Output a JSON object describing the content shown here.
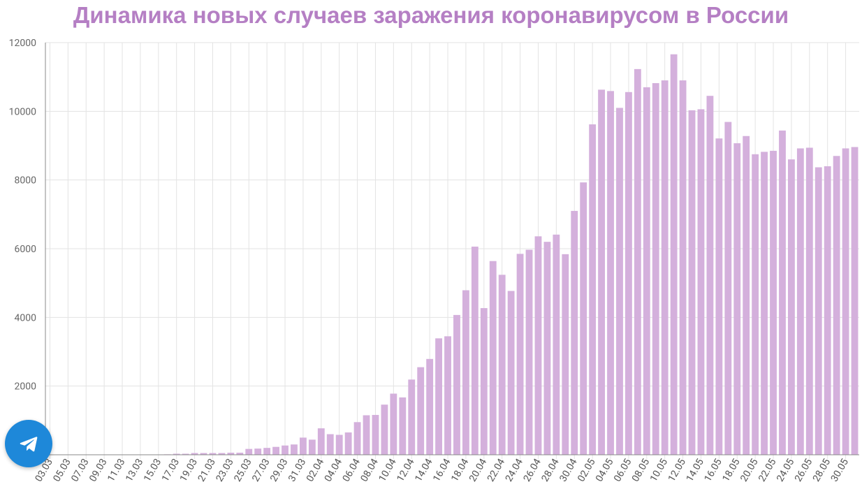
{
  "title": "Динамика новых случаев заражения коронавирусом в России",
  "telegram_button": {
    "icon": "telegram-paper-plane-icon"
  },
  "chart_data": {
    "type": "bar",
    "title": "Динамика новых случаев заражения коронавирусом в России",
    "xlabel": "",
    "ylabel": "",
    "ylim": [
      0,
      12000
    ],
    "yticks": [
      2000,
      4000,
      6000,
      8000,
      10000,
      12000
    ],
    "grid": true,
    "bar_color": "#d4b0dc",
    "title_color": "#b57fc4",
    "categories": [
      "03.03",
      "04.03",
      "05.03",
      "06.03",
      "07.03",
      "08.03",
      "09.03",
      "10.03",
      "11.03",
      "12.03",
      "13.03",
      "14.03",
      "15.03",
      "16.03",
      "17.03",
      "18.03",
      "19.03",
      "20.03",
      "21.03",
      "22.03",
      "23.03",
      "24.03",
      "25.03",
      "26.03",
      "27.03",
      "28.03",
      "29.03",
      "30.03",
      "31.03",
      "01.04",
      "02.04",
      "03.04",
      "04.04",
      "05.04",
      "06.04",
      "07.04",
      "08.04",
      "09.04",
      "10.04",
      "11.04",
      "12.04",
      "13.04",
      "14.04",
      "15.04",
      "16.04",
      "17.04",
      "18.04",
      "19.04",
      "20.04",
      "21.04",
      "22.04",
      "23.04",
      "24.04",
      "25.04",
      "26.04",
      "27.04",
      "28.04",
      "29.04",
      "30.04",
      "01.05",
      "02.05",
      "03.05",
      "04.05",
      "05.05",
      "06.05",
      "07.05",
      "08.05",
      "09.05",
      "10.05",
      "11.05",
      "12.05",
      "13.05",
      "14.05",
      "15.05",
      "16.05",
      "17.05",
      "18.05",
      "19.05",
      "20.05",
      "21.05",
      "22.05",
      "23.05",
      "24.05",
      "25.05",
      "26.05",
      "27.05",
      "28.05",
      "29.05",
      "30.05",
      "31.05"
    ],
    "values": [
      0,
      0,
      0,
      0,
      0,
      0,
      0,
      0,
      0,
      0,
      0,
      0,
      0,
      14,
      30,
      30,
      50,
      50,
      50,
      50,
      60,
      60,
      170,
      180,
      200,
      230,
      270,
      300,
      500,
      440,
      770,
      600,
      580,
      650,
      950,
      1150,
      1160,
      1460,
      1780,
      1670,
      2190,
      2550,
      2790,
      3390,
      3450,
      4070,
      4790,
      6060,
      4270,
      5640,
      5240,
      4770,
      5850,
      5970,
      6360,
      6200,
      6410,
      5840,
      7100,
      7930,
      9620,
      10630,
      10590,
      10100,
      10560,
      11230,
      10700,
      10820,
      10900,
      11660,
      10900,
      10030,
      10060,
      10450,
      9210,
      9690,
      9070,
      9280,
      8750,
      8820,
      8850,
      9440,
      8600,
      8920,
      8940,
      8370,
      8400,
      8700,
      8920,
      8960
    ]
  }
}
